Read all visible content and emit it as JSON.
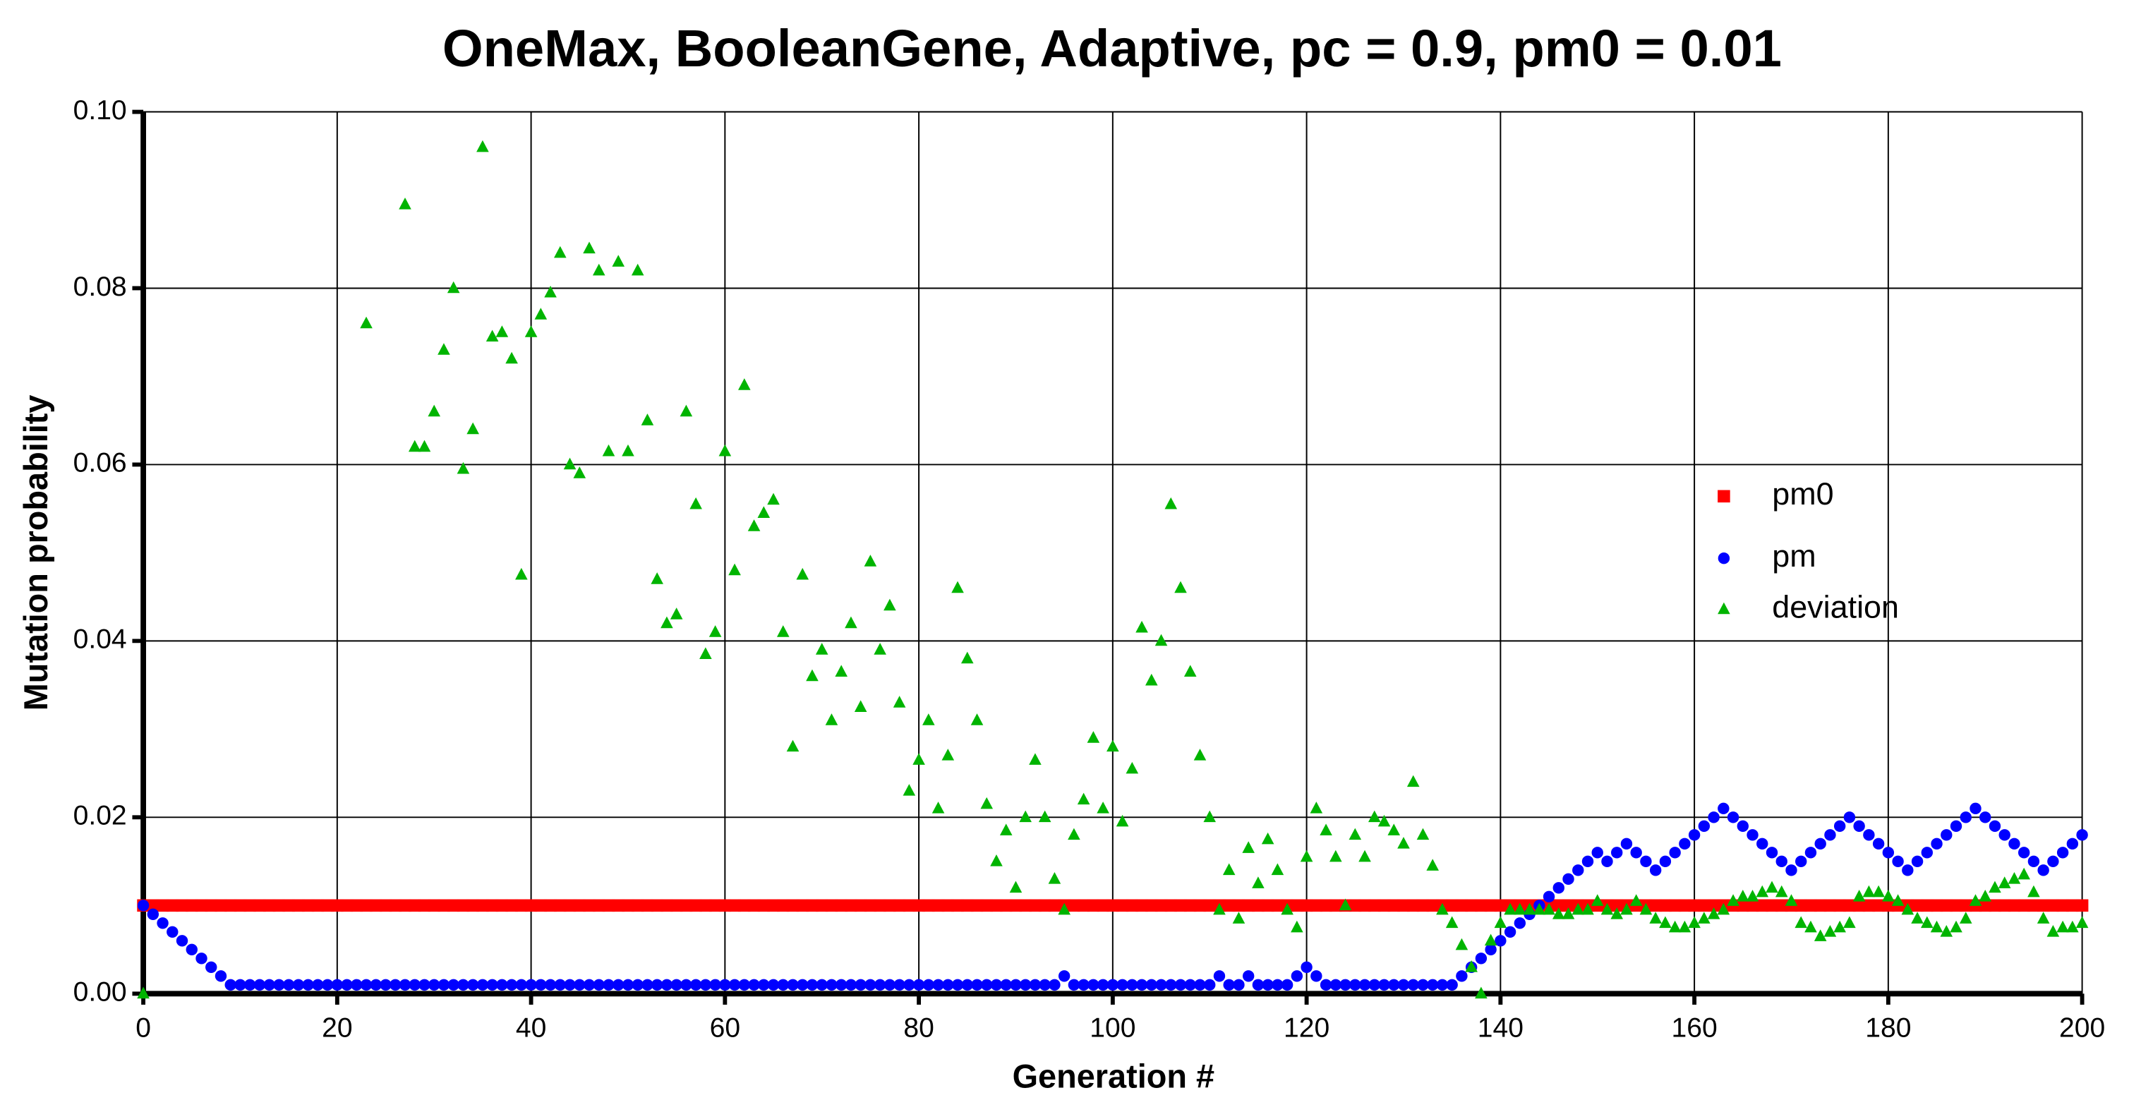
{
  "chart_data": {
    "type": "scatter",
    "title": "OneMax, BooleanGene, Adaptive, pc = 0.9, pm0 = 0.01",
    "x_label": "Generation #",
    "y_label": "Mutation probability",
    "xlim": [
      0,
      200
    ],
    "ylim": [
      0,
      0.1
    ],
    "xticks": [
      0,
      20,
      40,
      60,
      80,
      100,
      120,
      140,
      160,
      180,
      200
    ],
    "yticks": [
      {
        "value": 0,
        "label": "0.00"
      },
      {
        "value": 0.02,
        "label": "0.02"
      },
      {
        "value": 0.04,
        "label": "0.04"
      },
      {
        "value": 0.06,
        "label": "0.06"
      },
      {
        "value": 0.08,
        "label": "0.08"
      },
      {
        "value": 0.1,
        "label": "0.10"
      }
    ],
    "grid": true,
    "legend": "right",
    "x": [
      0,
      1,
      2,
      3,
      4,
      5,
      6,
      7,
      8,
      9,
      10,
      11,
      12,
      13,
      14,
      15,
      16,
      17,
      18,
      19,
      20,
      21,
      22,
      23,
      24,
      25,
      26,
      27,
      28,
      29,
      30,
      31,
      32,
      33,
      34,
      35,
      36,
      37,
      38,
      39,
      40,
      41,
      42,
      43,
      44,
      45,
      46,
      47,
      48,
      49,
      50,
      51,
      52,
      53,
      54,
      55,
      56,
      57,
      58,
      59,
      60,
      61,
      62,
      63,
      64,
      65,
      66,
      67,
      68,
      69,
      70,
      71,
      72,
      73,
      74,
      75,
      76,
      77,
      78,
      79,
      80,
      81,
      82,
      83,
      84,
      85,
      86,
      87,
      88,
      89,
      90,
      91,
      92,
      93,
      94,
      95,
      96,
      97,
      98,
      99,
      100,
      101,
      102,
      103,
      104,
      105,
      106,
      107,
      108,
      109,
      110,
      111,
      112,
      113,
      114,
      115,
      116,
      117,
      118,
      119,
      120,
      121,
      122,
      123,
      124,
      125,
      126,
      127,
      128,
      129,
      130,
      131,
      132,
      133,
      134,
      135,
      136,
      137,
      138,
      139,
      140,
      141,
      142,
      143,
      144,
      145,
      146,
      147,
      148,
      149,
      150,
      151,
      152,
      153,
      154,
      155,
      156,
      157,
      158,
      159,
      160,
      161,
      162,
      163,
      164,
      165,
      166,
      167,
      168,
      169,
      170,
      171,
      172,
      173,
      174,
      175,
      176,
      177,
      178,
      179,
      180,
      181,
      182,
      183,
      184,
      185,
      186,
      187,
      188,
      189,
      190,
      191,
      192,
      193,
      194,
      195,
      196,
      197,
      198,
      199,
      200
    ],
    "series": [
      {
        "name": "pm0",
        "color": "#ff0000",
        "marker": "square",
        "values": [
          0.01,
          0.01,
          0.01,
          0.01,
          0.01,
          0.01,
          0.01,
          0.01,
          0.01,
          0.01,
          0.01,
          0.01,
          0.01,
          0.01,
          0.01,
          0.01,
          0.01,
          0.01,
          0.01,
          0.01,
          0.01,
          0.01,
          0.01,
          0.01,
          0.01,
          0.01,
          0.01,
          0.01,
          0.01,
          0.01,
          0.01,
          0.01,
          0.01,
          0.01,
          0.01,
          0.01,
          0.01,
          0.01,
          0.01,
          0.01,
          0.01,
          0.01,
          0.01,
          0.01,
          0.01,
          0.01,
          0.01,
          0.01,
          0.01,
          0.01,
          0.01,
          0.01,
          0.01,
          0.01,
          0.01,
          0.01,
          0.01,
          0.01,
          0.01,
          0.01,
          0.01,
          0.01,
          0.01,
          0.01,
          0.01,
          0.01,
          0.01,
          0.01,
          0.01,
          0.01,
          0.01,
          0.01,
          0.01,
          0.01,
          0.01,
          0.01,
          0.01,
          0.01,
          0.01,
          0.01,
          0.01,
          0.01,
          0.01,
          0.01,
          0.01,
          0.01,
          0.01,
          0.01,
          0.01,
          0.01,
          0.01,
          0.01,
          0.01,
          0.01,
          0.01,
          0.01,
          0.01,
          0.01,
          0.01,
          0.01,
          0.01,
          0.01,
          0.01,
          0.01,
          0.01,
          0.01,
          0.01,
          0.01,
          0.01,
          0.01,
          0.01,
          0.01,
          0.01,
          0.01,
          0.01,
          0.01,
          0.01,
          0.01,
          0.01,
          0.01,
          0.01,
          0.01,
          0.01,
          0.01,
          0.01,
          0.01,
          0.01,
          0.01,
          0.01,
          0.01,
          0.01,
          0.01,
          0.01,
          0.01,
          0.01,
          0.01,
          0.01,
          0.01,
          0.01,
          0.01,
          0.01,
          0.01,
          0.01,
          0.01,
          0.01,
          0.01,
          0.01,
          0.01,
          0.01,
          0.01,
          0.01,
          0.01,
          0.01,
          0.01,
          0.01,
          0.01,
          0.01,
          0.01,
          0.01,
          0.01,
          0.01,
          0.01,
          0.01,
          0.01,
          0.01,
          0.01,
          0.01,
          0.01,
          0.01,
          0.01,
          0.01,
          0.01,
          0.01,
          0.01,
          0.01,
          0.01,
          0.01,
          0.01,
          0.01,
          0.01,
          0.01,
          0.01,
          0.01,
          0.01,
          0.01,
          0.01,
          0.01,
          0.01,
          0.01,
          0.01,
          0.01,
          0.01,
          0.01,
          0.01,
          0.01,
          0.01,
          0.01,
          0.01,
          0.01,
          0.01,
          0.01
        ]
      },
      {
        "name": "pm",
        "color": "#0000ff",
        "marker": "circle",
        "values": [
          0.01,
          0.009,
          0.008,
          0.007,
          0.006,
          0.005,
          0.004,
          0.003,
          0.002,
          0.001,
          0.001,
          0.001,
          0.001,
          0.001,
          0.001,
          0.001,
          0.001,
          0.001,
          0.001,
          0.001,
          0.001,
          0.001,
          0.001,
          0.001,
          0.001,
          0.001,
          0.001,
          0.001,
          0.001,
          0.001,
          0.001,
          0.001,
          0.001,
          0.001,
          0.001,
          0.001,
          0.001,
          0.001,
          0.001,
          0.001,
          0.001,
          0.001,
          0.001,
          0.001,
          0.001,
          0.001,
          0.001,
          0.001,
          0.001,
          0.001,
          0.001,
          0.001,
          0.001,
          0.001,
          0.001,
          0.001,
          0.001,
          0.001,
          0.001,
          0.001,
          0.001,
          0.001,
          0.001,
          0.001,
          0.001,
          0.001,
          0.001,
          0.001,
          0.001,
          0.001,
          0.001,
          0.001,
          0.001,
          0.001,
          0.001,
          0.001,
          0.001,
          0.001,
          0.001,
          0.001,
          0.001,
          0.001,
          0.001,
          0.001,
          0.001,
          0.001,
          0.001,
          0.001,
          0.001,
          0.001,
          0.001,
          0.001,
          0.001,
          0.001,
          0.001,
          0.002,
          0.001,
          0.001,
          0.001,
          0.001,
          0.001,
          0.001,
          0.001,
          0.001,
          0.001,
          0.001,
          0.001,
          0.001,
          0.001,
          0.001,
          0.001,
          0.002,
          0.001,
          0.001,
          0.002,
          0.001,
          0.001,
          0.001,
          0.001,
          0.002,
          0.003,
          0.002,
          0.001,
          0.001,
          0.001,
          0.001,
          0.001,
          0.001,
          0.001,
          0.001,
          0.001,
          0.001,
          0.001,
          0.001,
          0.001,
          0.001,
          0.002,
          0.003,
          0.004,
          0.005,
          0.006,
          0.007,
          0.008,
          0.009,
          0.01,
          0.011,
          0.012,
          0.013,
          0.014,
          0.015,
          0.016,
          0.015,
          0.016,
          0.017,
          0.016,
          0.015,
          0.014,
          0.015,
          0.016,
          0.017,
          0.018,
          0.019,
          0.02,
          0.021,
          0.02,
          0.019,
          0.018,
          0.017,
          0.016,
          0.015,
          0.014,
          0.015,
          0.016,
          0.017,
          0.018,
          0.019,
          0.02,
          0.019,
          0.018,
          0.017,
          0.016,
          0.015,
          0.014,
          0.015,
          0.016,
          0.017,
          0.018,
          0.019,
          0.02,
          0.021,
          0.02,
          0.019,
          0.018,
          0.017,
          0.016,
          0.015,
          0.014,
          0.015,
          0.016,
          0.017,
          0.018
        ]
      },
      {
        "name": "deviation",
        "color": "#00b400",
        "marker": "triangle",
        "values": [
          0,
          null,
          null,
          null,
          null,
          null,
          null,
          null,
          null,
          null,
          null,
          null,
          null,
          null,
          null,
          null,
          null,
          null,
          null,
          null,
          null,
          null,
          null,
          0.076,
          null,
          null,
          null,
          0.0895,
          0.062,
          0.062,
          0.066,
          0.073,
          0.08,
          0.0595,
          0.064,
          0.096,
          0.0745,
          0.075,
          0.072,
          0.0475,
          0.075,
          0.077,
          0.0795,
          0.084,
          0.06,
          0.059,
          0.0845,
          0.082,
          0.0615,
          0.083,
          0.0615,
          0.082,
          0.065,
          0.047,
          0.042,
          0.043,
          0.066,
          0.0555,
          0.0385,
          0.041,
          0.0615,
          0.048,
          0.069,
          0.053,
          0.0545,
          0.056,
          0.041,
          0.028,
          0.0475,
          0.036,
          0.039,
          0.031,
          0.0365,
          0.042,
          0.0325,
          0.049,
          0.039,
          0.044,
          0.033,
          0.023,
          0.0265,
          0.031,
          0.021,
          0.027,
          0.046,
          0.038,
          0.031,
          0.0215,
          0.015,
          0.0185,
          0.012,
          0.02,
          0.0265,
          0.02,
          0.013,
          0.0095,
          0.018,
          0.022,
          0.029,
          0.021,
          0.028,
          0.0195,
          0.0255,
          0.0415,
          0.0355,
          0.04,
          0.0555,
          0.046,
          0.0365,
          0.027,
          0.02,
          0.0095,
          0.014,
          0.0085,
          0.0165,
          0.0125,
          0.0175,
          0.014,
          0.0095,
          0.0075,
          0.0155,
          0.021,
          0.0185,
          0.0155,
          0.01,
          0.018,
          0.0155,
          0.02,
          0.0195,
          0.0185,
          0.017,
          0.024,
          0.018,
          0.0145,
          0.0095,
          0.008,
          0.0055,
          0.003,
          0,
          0.006,
          0.008,
          0.0095,
          0.0095,
          0.0095,
          0.0095,
          0.0095,
          0.009,
          0.009,
          0.0095,
          0.0095,
          0.0105,
          0.0095,
          0.009,
          0.0095,
          0.0105,
          0.0095,
          0.0085,
          0.008,
          0.0075,
          0.0075,
          0.008,
          0.0085,
          0.009,
          0.0095,
          0.0105,
          0.011,
          0.011,
          0.0115,
          0.012,
          0.0115,
          0.0105,
          0.008,
          0.0075,
          0.0065,
          0.007,
          0.0075,
          0.008,
          0.011,
          0.0115,
          0.0115,
          0.011,
          0.0105,
          0.0095,
          0.0085,
          0.008,
          0.0075,
          0.007,
          0.0075,
          0.0085,
          0.0105,
          0.011,
          0.012,
          0.0125,
          0.013,
          0.0135,
          0.0115,
          0.0085,
          0.007,
          0.0075,
          0.0075,
          0.008
        ]
      }
    ]
  }
}
